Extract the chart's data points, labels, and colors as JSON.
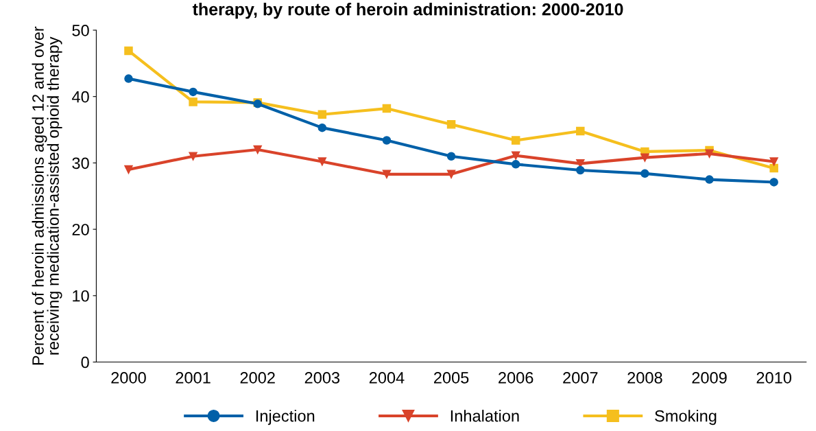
{
  "chart_data": {
    "type": "line",
    "title": "therapy, by route of heroin administration: 2000-2010",
    "ylabel": "Percent of heroin admissions aged 12 and over\nreceiving medication-assisted opioid therapy",
    "categories": [
      "2000",
      "2001",
      "2002",
      "2003",
      "2004",
      "2005",
      "2006",
      "2007",
      "2008",
      "2009",
      "2010"
    ],
    "series": [
      {
        "name": "Injection",
        "color": "#0060a8",
        "marker": "circle",
        "values": [
          42.7,
          40.7,
          38.9,
          35.3,
          33.4,
          31.0,
          29.8,
          28.9,
          28.4,
          27.5,
          27.1
        ]
      },
      {
        "name": "Inhalation",
        "color": "#d9432a",
        "marker": "triangle",
        "values": [
          29.0,
          31.0,
          32.0,
          30.2,
          28.3,
          28.3,
          31.1,
          29.9,
          30.8,
          31.4,
          30.2
        ]
      },
      {
        "name": "Smoking",
        "color": "#f5bf1e",
        "marker": "square",
        "values": [
          46.9,
          39.2,
          39.1,
          37.3,
          38.2,
          35.8,
          33.4,
          34.8,
          31.7,
          31.9,
          29.2
        ]
      }
    ],
    "ylim": [
      0,
      50
    ],
    "yticks": [
      0,
      10,
      20,
      30,
      40,
      50
    ],
    "grid": false,
    "legend": "bottom",
    "line_style": "solid"
  }
}
